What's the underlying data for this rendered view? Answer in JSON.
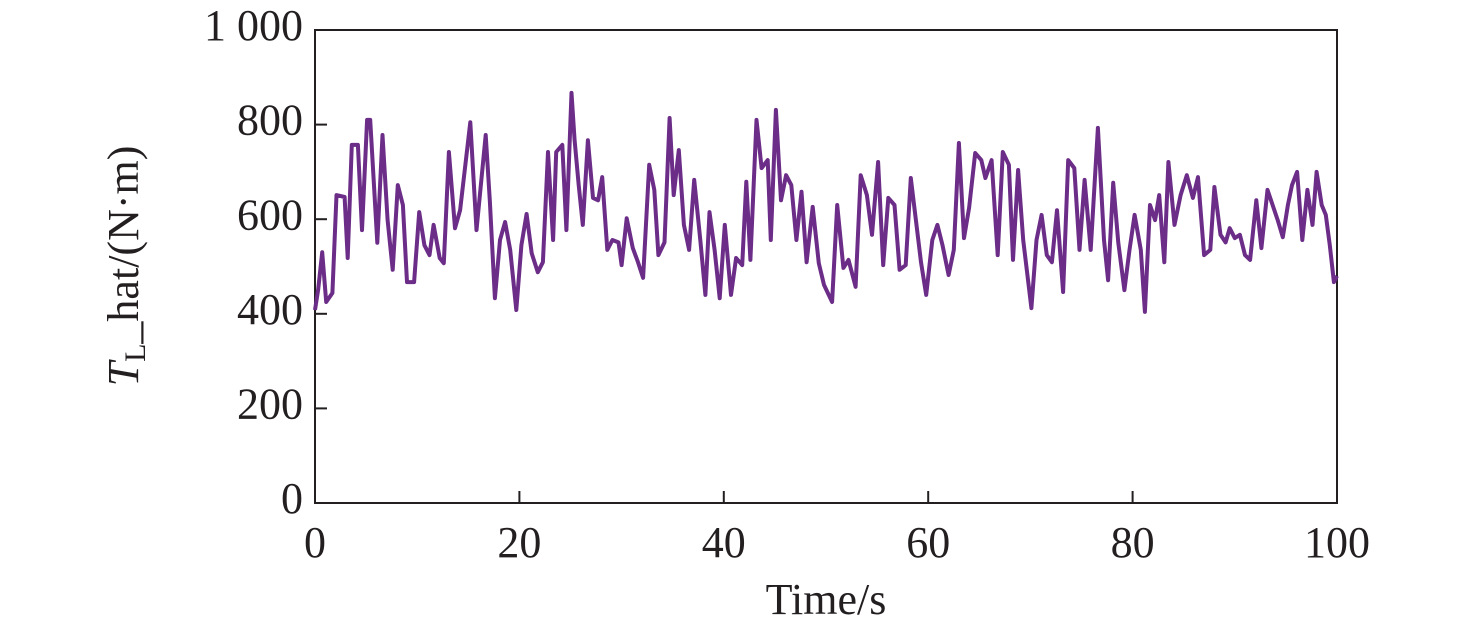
{
  "chart_data": {
    "type": "line",
    "xlabel": "Time/s",
    "ylabel": {
      "symbol": "T",
      "subscript": "L",
      "text": "_hat/(N·m)"
    },
    "color": "#6b2d87",
    "xlim": [
      0,
      100
    ],
    "xticks": [
      0,
      20,
      40,
      60,
      80,
      100
    ],
    "ylim": [
      0,
      1000
    ],
    "yticks": [
      0,
      200,
      400,
      600,
      800,
      {
        "value": 1000,
        "label": "1 000"
      }
    ],
    "x": [
      0,
      0.3,
      0.7,
      1.1,
      1.7,
      2.1,
      2.9,
      3.2,
      3.6,
      4.2,
      4.6,
      5.1,
      5.4,
      6.1,
      6.6,
      7.1,
      7.6,
      8.1,
      8.6,
      9.0,
      9.7,
      10.2,
      10.7,
      11.2,
      11.6,
      12.2,
      12.6,
      13.1,
      13.7,
      14.2,
      15.2,
      15.8,
      16.7,
      17.1,
      17.6,
      18.1,
      18.6,
      19.1,
      19.7,
      20.2,
      20.7,
      21.2,
      21.8,
      22.3,
      22.8,
      23.3,
      23.6,
      24.2,
      24.6,
      25.1,
      25.4,
      25.8,
      26.2,
      26.7,
      27.2,
      27.7,
      28.1,
      28.6,
      29.1,
      29.7,
      30.0,
      30.5,
      31.1,
      31.6,
      32.1,
      32.7,
      33.2,
      33.6,
      34.2,
      34.7,
      35.1,
      35.6,
      36.1,
      36.6,
      37.1,
      37.7,
      38.2,
      38.6,
      39.1,
      39.6,
      40.1,
      40.7,
      41.2,
      41.8,
      42.2,
      42.6,
      43.2,
      43.7,
      44.3,
      44.6,
      45.1,
      45.6,
      46.1,
      46.6,
      47.1,
      47.6,
      48.1,
      48.7,
      49.3,
      49.8,
      50.6,
      51.1,
      51.7,
      52.2,
      52.9,
      53.4,
      54.0,
      54.5,
      55.1,
      55.6,
      56.1,
      56.7,
      57.2,
      57.8,
      58.3,
      58.8,
      59.3,
      59.8,
      60.4,
      60.9,
      61.4,
      62.0,
      62.5,
      63.0,
      63.5,
      64.0,
      64.6,
      65.2,
      65.6,
      66.2,
      66.8,
      67.3,
      67.9,
      68.3,
      68.8,
      69.3,
      70.1,
      70.6,
      71.1,
      71.6,
      72.1,
      72.6,
      73.2,
      73.7,
      74.3,
      74.8,
      75.3,
      75.9,
      76.6,
      77.2,
      77.6,
      78.1,
      78.6,
      79.2,
      79.7,
      80.2,
      80.8,
      81.2,
      81.7,
      82.2,
      82.6,
      83.1,
      83.5,
      84.1,
      84.7,
      85.3,
      85.9,
      86.4,
      87.0,
      87.6,
      88.0,
      88.6,
      89.1,
      89.5,
      90.0,
      90.5,
      91.0,
      91.5,
      92.1,
      92.6,
      93.2,
      93.7,
      94.2,
      94.7,
      95.2,
      95.6,
      96.1,
      96.6,
      97.1,
      97.6,
      98.0,
      98.5,
      98.9,
      99.3,
      99.7,
      100
    ],
    "values": [
      408,
      450,
      530,
      425,
      444,
      651,
      647,
      518,
      757,
      757,
      577,
      810,
      810,
      550,
      778,
      598,
      493,
      672,
      630,
      467,
      467,
      615,
      545,
      524,
      588,
      518,
      507,
      742,
      581,
      619,
      805,
      577,
      778,
      640,
      433,
      556,
      594,
      535,
      408,
      545,
      611,
      528,
      488,
      509,
      742,
      556,
      742,
      757,
      577,
      867,
      767,
      672,
      588,
      767,
      645,
      640,
      689,
      535,
      556,
      551,
      503,
      602,
      539,
      509,
      476,
      715,
      662,
      524,
      551,
      814,
      651,
      746,
      588,
      535,
      683,
      556,
      440,
      615,
      535,
      433,
      588,
      440,
      518,
      503,
      679,
      514,
      810,
      708,
      725,
      556,
      831,
      640,
      693,
      672,
      556,
      658,
      509,
      626,
      507,
      461,
      425,
      630,
      497,
      514,
      457,
      693,
      651,
      567,
      721,
      503,
      645,
      630,
      493,
      503,
      687,
      598,
      509,
      440,
      556,
      588,
      545,
      482,
      535,
      761,
      560,
      624,
      740,
      725,
      687,
      725,
      524,
      742,
      715,
      514,
      704,
      556,
      412,
      556,
      609,
      524,
      509,
      619,
      446,
      725,
      708,
      535,
      683,
      535,
      793,
      556,
      471,
      677,
      550,
      450,
      535,
      609,
      535,
      404,
      630,
      598,
      651,
      509,
      721,
      588,
      651,
      693,
      645,
      689,
      524,
      535,
      668,
      567,
      551,
      581,
      560,
      567,
      524,
      514,
      640,
      539,
      662,
      630,
      598,
      562,
      630,
      672,
      700,
      556,
      662,
      588,
      700,
      630,
      609,
      545,
      467,
      480
    ]
  }
}
